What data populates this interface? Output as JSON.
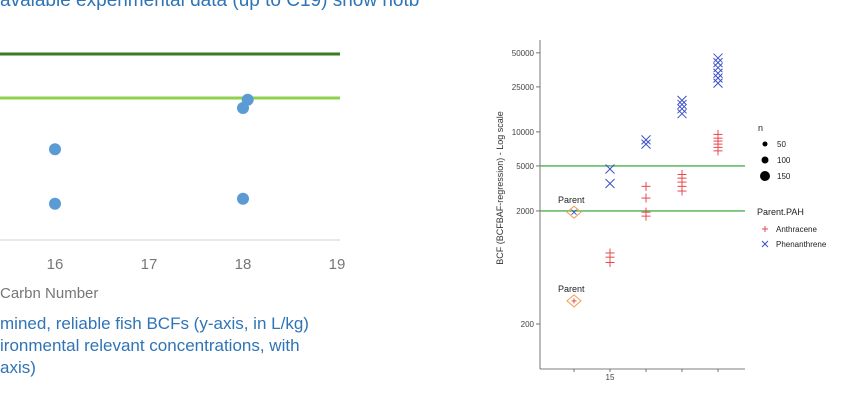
{
  "captions": {
    "top": "avaiable experimental data (up to C19) show hotb",
    "bottom": "mined, reliable fish BCFs (y-axis, in L/kg)\nironmental relevant concentrations, with\naxis)"
  },
  "colors": {
    "caption": "#2f74b5",
    "left_points": "#5b9bd5",
    "line_dark": "#3a7d1e",
    "line_light": "#8fd14f",
    "hline": "#4caf50",
    "anthracene": "#e8474c",
    "phenanthrene": "#3b4fc8",
    "parent_marker": "#f0a050"
  },
  "chart_data": [
    {
      "type": "scatter",
      "xlabel": "Carbn Number",
      "x_ticks": [
        "16",
        "17",
        "18",
        "19"
      ],
      "reference_lines": [
        {
          "name": "upper",
          "color": "#3a7d1e"
        },
        {
          "name": "lower",
          "color": "#8fd14f"
        }
      ],
      "points": [
        {
          "x": 16.0,
          "y": 0.55
        },
        {
          "x": 16.0,
          "y": 0.22
        },
        {
          "x": 18.0,
          "y": 0.25
        },
        {
          "x": 18.0,
          "y": 0.8
        },
        {
          "x": 18.05,
          "y": 0.85
        }
      ]
    },
    {
      "type": "scatter",
      "ylabel": "BCF (BCFBAF-regression) - Log scale",
      "y_scale": "log",
      "ylim": [
        80,
        65000
      ],
      "y_ticks": [
        200,
        2000,
        5000,
        10000,
        25000,
        50000
      ],
      "y_tick_labels": [
        "200",
        "2000",
        "5000",
        "10000",
        "25000",
        "50000"
      ],
      "x_tick_labels": [
        "15"
      ],
      "hlines": [
        2000,
        5000
      ],
      "annotations": [
        {
          "text": "Parent",
          "x": 14,
          "y": 1950,
          "marker": "Phenanthrene"
        },
        {
          "text": "Parent",
          "x": 14,
          "y": 320,
          "marker": "Anthracene"
        }
      ],
      "legend_size": {
        "title": "n",
        "items": [
          "50",
          "100",
          "150"
        ]
      },
      "legend_series": {
        "title": "Parent.PAH",
        "items": [
          "Anthracene",
          "Phenanthrene"
        ]
      },
      "series": [
        {
          "name": "Anthracene",
          "marker": "plus",
          "points": [
            {
              "x": 15,
              "y": 700
            },
            {
              "x": 15,
              "y": 780
            },
            {
              "x": 15,
              "y": 850
            },
            {
              "x": 16,
              "y": 1800
            },
            {
              "x": 16,
              "y": 1950
            },
            {
              "x": 16,
              "y": 2600
            },
            {
              "x": 16,
              "y": 3300
            },
            {
              "x": 17,
              "y": 3000
            },
            {
              "x": 17,
              "y": 3300
            },
            {
              "x": 17,
              "y": 3600
            },
            {
              "x": 17,
              "y": 3900
            },
            {
              "x": 17,
              "y": 4200
            },
            {
              "x": 18,
              "y": 6800
            },
            {
              "x": 18,
              "y": 7300
            },
            {
              "x": 18,
              "y": 7800
            },
            {
              "x": 18,
              "y": 8300
            },
            {
              "x": 18,
              "y": 8800
            },
            {
              "x": 18,
              "y": 9500
            }
          ]
        },
        {
          "name": "Phenanthrene",
          "marker": "cross",
          "points": [
            {
              "x": 15,
              "y": 3500
            },
            {
              "x": 15,
              "y": 4700
            },
            {
              "x": 16,
              "y": 7800
            },
            {
              "x": 16,
              "y": 8500
            },
            {
              "x": 17,
              "y": 14500
            },
            {
              "x": 17,
              "y": 16000
            },
            {
              "x": 17,
              "y": 17500
            },
            {
              "x": 17,
              "y": 19000
            },
            {
              "x": 18,
              "y": 27000
            },
            {
              "x": 18,
              "y": 30000
            },
            {
              "x": 18,
              "y": 33000
            },
            {
              "x": 18,
              "y": 37000
            },
            {
              "x": 18,
              "y": 41000
            },
            {
              "x": 18,
              "y": 45000
            }
          ]
        }
      ]
    }
  ]
}
